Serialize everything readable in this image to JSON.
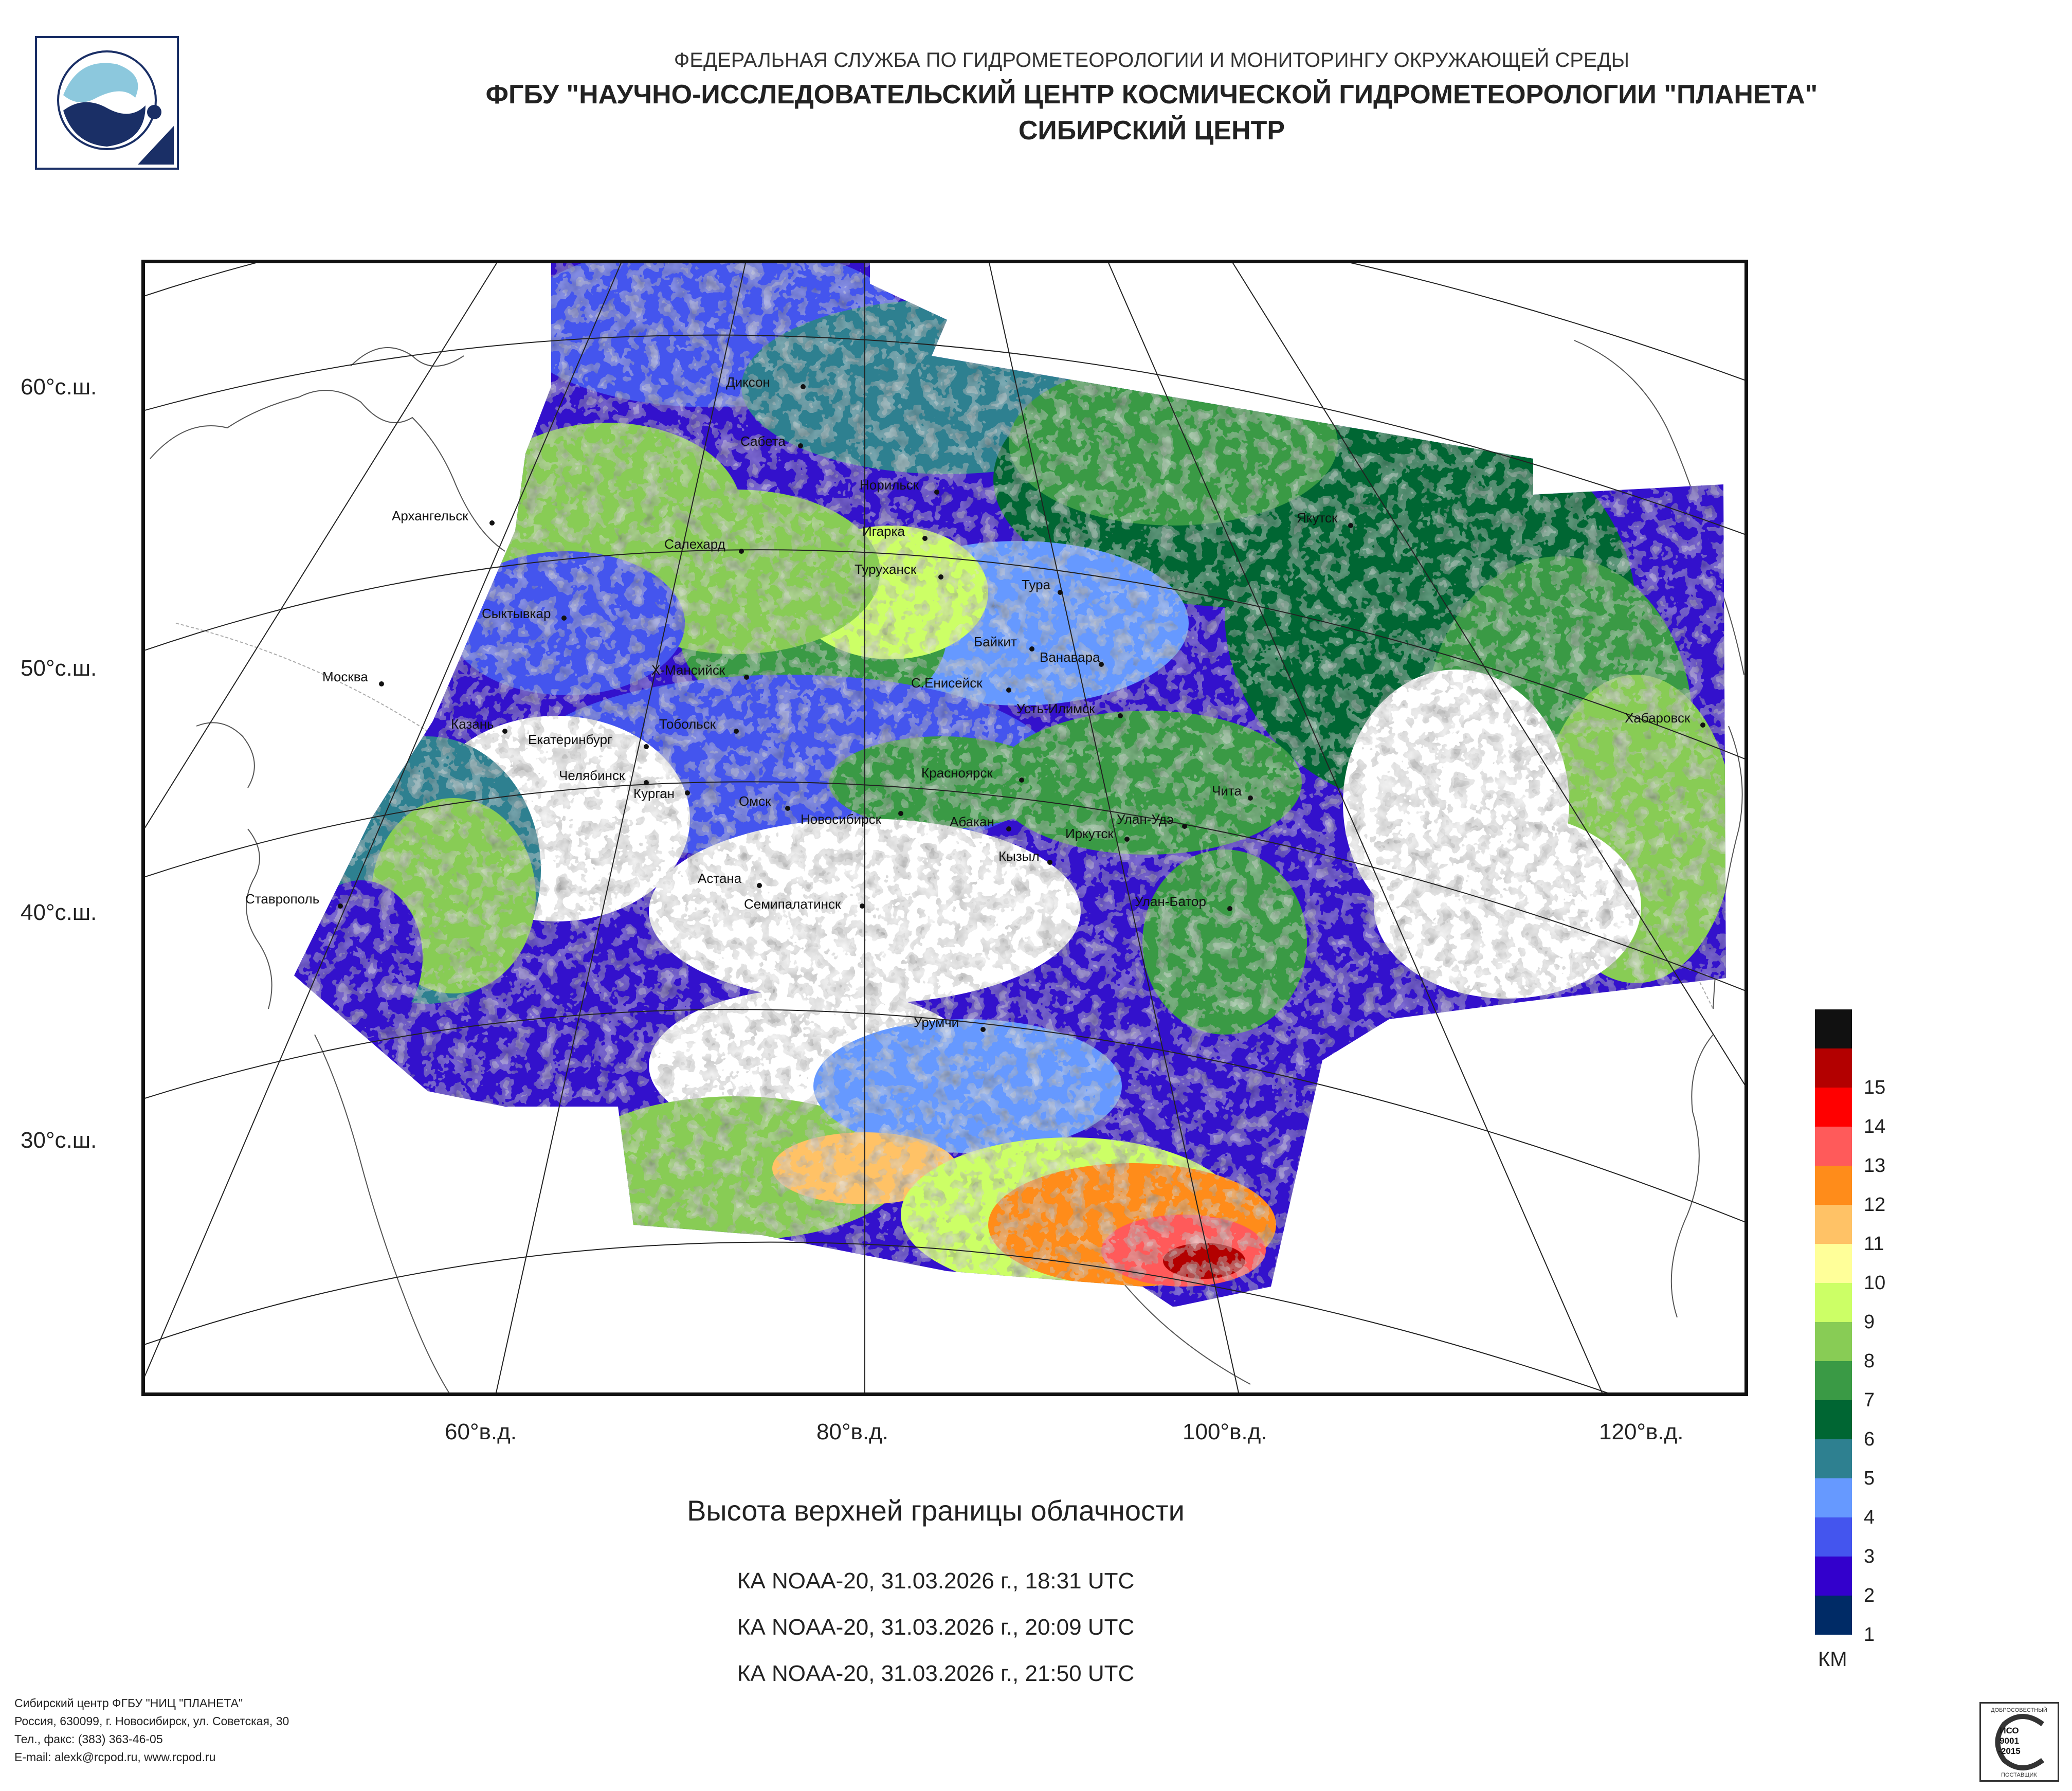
{
  "header": {
    "line1": "ФЕДЕРАЛЬНАЯ СЛУЖБА ПО ГИДРОМЕТЕОРОЛОГИИ И МОНИТОРИНГУ ОКРУЖАЮЩЕЙ СРЕДЫ",
    "line2": "ФГБУ \"НАУЧНО-ИССЛЕДОВАТЕЛЬСКИЙ ЦЕНТР КОСМИЧЕСКОЙ ГИДРОМЕТЕОРОЛОГИИ \"ПЛАНЕТА\"",
    "line3": "СИБИРСКИЙ ЦЕНТР"
  },
  "map": {
    "lat_labels": [
      "60°с.ш.",
      "50°с.ш.",
      "40°с.ш.",
      "30°с.ш."
    ],
    "lon_labels": [
      "60°в.д.",
      "80°в.д.",
      "100°в.д.",
      "120°в.д."
    ],
    "cities": [
      "Диксон",
      "Сабета",
      "Норильск",
      "Архангельск",
      "Салехард",
      "Игарка",
      "Туруханск",
      "Якутск",
      "Тура",
      "Сыктывкар",
      "Байкит",
      "Ванавара",
      "Москва",
      "Х-Мансийск",
      "С.Енисейск",
      "Усть-Илимск",
      "Хабаровск",
      "Казань",
      "Тобольск",
      "Екатеринбург",
      "Челябинск",
      "Красноярск",
      "Курган",
      "Омск",
      "Чита",
      "Новосибирск",
      "Абакан",
      "Улан-Удэ",
      "Иркутск",
      "Кызыл",
      "Ставрополь",
      "Астана",
      "Семипалатинск",
      "Улан-Батор",
      "Урумчи"
    ]
  },
  "title": "Высота верхней границы облачности",
  "passes": [
    "КА NOAA-20, 31.03.2026 г., 18:31 UTC",
    "КА NOAA-20, 31.03.2026 г., 20:09 UTC",
    "КА NOAA-20, 31.03.2026 г., 21:50 UTC"
  ],
  "legend": {
    "unit": "КМ",
    "levels": [
      {
        "label": "",
        "color": "#111111"
      },
      {
        "label": "15",
        "color": "#b30000"
      },
      {
        "label": "14",
        "color": "#ff0000"
      },
      {
        "label": "13",
        "color": "#ff5a5a"
      },
      {
        "label": "12",
        "color": "#ff8c1a"
      },
      {
        "label": "11",
        "color": "#ffc266"
      },
      {
        "label": "10",
        "color": "#ffff99"
      },
      {
        "label": "9",
        "color": "#ccff66"
      },
      {
        "label": "8",
        "color": "#88cc55"
      },
      {
        "label": "7",
        "color": "#3a9a45"
      },
      {
        "label": "6",
        "color": "#006633"
      },
      {
        "label": "5",
        "color": "#2e8090"
      },
      {
        "label": "4",
        "color": "#6699ff"
      },
      {
        "label": "3",
        "color": "#4455ee"
      },
      {
        "label": "2",
        "color": "#3300cc"
      },
      {
        "label": "1",
        "color": "#002b66"
      }
    ]
  },
  "footer": {
    "line1": "Сибирский центр ФГБУ \"НИЦ \"ПЛАНЕТА\"",
    "line2": "Россия, 630099, г. Новосибирск, ул. Советская, 30",
    "line3": "Тел., факс: (383) 363-46-05",
    "line4": "E-mail: alexk@rcpod.ru, www.rcpod.ru"
  },
  "iso": {
    "top": "ДОБРОСОВЕСТНЫЙ",
    "line1": "ИСО",
    "line2": "9001",
    "line3": "-2015",
    "bottom": "ПОСТАВЩИК"
  }
}
